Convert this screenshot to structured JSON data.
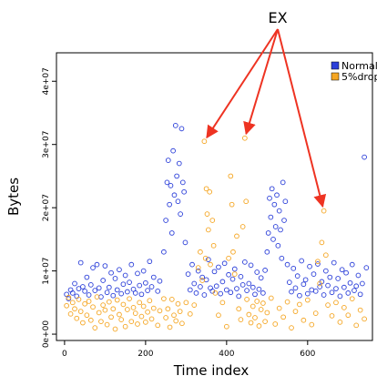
{
  "chart_data": {
    "type": "scatter",
    "xlabel": "Time index",
    "ylabel": "Bytes",
    "xlim": [
      -20,
      760
    ],
    "ylim": [
      -1000000,
      44500000
    ],
    "x_ticks": [
      0,
      200,
      400,
      600
    ],
    "x_tick_labels": [
      "0",
      "200",
      "400",
      "600"
    ],
    "y_ticks": [
      0,
      10000000,
      20000000,
      30000000,
      40000000
    ],
    "y_tick_labels": [
      "0e+00",
      "1e+07",
      "2e+07",
      "3e+07",
      "4e+07"
    ],
    "grid": false,
    "legend": {
      "position": "top-right"
    },
    "annotation": {
      "text": "EX",
      "targets": [
        {
          "x": 345,
          "y": 30500000
        },
        {
          "x": 445,
          "y": 31000000
        },
        {
          "x": 640,
          "y": 19500000
        }
      ]
    },
    "series": [
      {
        "name": "Normal",
        "color": "#2b3fd9",
        "marker": "open-circle",
        "points": [
          [
            5,
            6300000.0
          ],
          [
            10,
            5600000.0
          ],
          [
            15,
            7000000.0
          ],
          [
            20,
            6500000.0
          ],
          [
            25,
            8000000.0
          ],
          [
            30,
            6000000.0
          ],
          [
            35,
            7200000.0
          ],
          [
            40,
            11300000.0
          ],
          [
            45,
            7500000.0
          ],
          [
            50,
            6800000.0
          ],
          [
            55,
            9000000.0
          ],
          [
            60,
            6200000.0
          ],
          [
            65,
            7800000.0
          ],
          [
            70,
            10500000.0
          ],
          [
            75,
            6900000.0
          ],
          [
            80,
            11000000.0
          ],
          [
            85,
            7300000.0
          ],
          [
            90,
            5900000.0
          ],
          [
            95,
            8500000.0
          ],
          [
            100,
            10800000.0
          ],
          [
            105,
            6600000.0
          ],
          [
            110,
            7400000.0
          ],
          [
            115,
            9700000.0
          ],
          [
            120,
            6100000.0
          ],
          [
            125,
            8800000.0
          ],
          [
            130,
            7000000.0
          ],
          [
            135,
            10200000.0
          ],
          [
            140,
            6400000.0
          ],
          [
            145,
            7900000.0
          ],
          [
            150,
            9300000.0
          ],
          [
            155,
            6700000.0
          ],
          [
            160,
            8200000.0
          ],
          [
            165,
            11000000.0
          ],
          [
            170,
            7100000.0
          ],
          [
            175,
            6500000.0
          ],
          [
            180,
            9600000.0
          ],
          [
            185,
            7700000.0
          ],
          [
            190,
            6300000.0
          ],
          [
            195,
            10000000.0
          ],
          [
            200,
            8100000.0
          ],
          [
            205,
            6900000.0
          ],
          [
            210,
            11500000.0
          ],
          [
            215,
            7500000.0
          ],
          [
            220,
            9000000.0
          ],
          [
            230,
            6800000.0
          ],
          [
            235,
            8400000.0
          ],
          [
            245,
            13000000.0
          ],
          [
            250,
            18000000.0
          ],
          [
            253,
            24000000.0
          ],
          [
            256,
            27500000.0
          ],
          [
            259,
            20500000.0
          ],
          [
            262,
            23500000.0
          ],
          [
            265,
            16000000.0
          ],
          [
            268,
            29000000.0
          ],
          [
            271,
            22000000.0
          ],
          [
            274,
            33000000.0
          ],
          [
            277,
            25000000.0
          ],
          [
            280,
            21000000.0
          ],
          [
            283,
            27000000.0
          ],
          [
            286,
            19000000.0
          ],
          [
            289,
            32500000.0
          ],
          [
            292,
            24000000.0
          ],
          [
            295,
            22500000.0
          ],
          [
            298,
            14500000.0
          ],
          [
            305,
            9500000.0
          ],
          [
            310,
            7000000.0
          ],
          [
            315,
            11000000.0
          ],
          [
            320,
            8000000.0
          ],
          [
            325,
            6500000.0
          ],
          [
            330,
            10000000.0
          ],
          [
            335,
            7500000.0
          ],
          [
            340,
            9000000.0
          ],
          [
            345,
            6200000.0
          ],
          [
            350,
            8600000.0
          ],
          [
            355,
            11800000.0
          ],
          [
            360,
            7300000.0
          ],
          [
            365,
            6800000.0
          ],
          [
            370,
            9900000.0
          ],
          [
            375,
            7600000.0
          ],
          [
            380,
            10600000.0
          ],
          [
            385,
            6400000.0
          ],
          [
            390,
            8300000.0
          ],
          [
            395,
            11200000.0
          ],
          [
            400,
            7000000.0
          ],
          [
            405,
            9400000.0
          ],
          [
            410,
            6600000.0
          ],
          [
            415,
            8700000.0
          ],
          [
            420,
            10300000.0
          ],
          [
            425,
            7200000.0
          ],
          [
            430,
            6000000.0
          ],
          [
            435,
            9100000.0
          ],
          [
            440,
            7800000.0
          ],
          [
            445,
            11400000.0
          ],
          [
            450,
            6900000.0
          ],
          [
            455,
            8000000.0
          ],
          [
            460,
            10900000.0
          ],
          [
            465,
            7400000.0
          ],
          [
            470,
            6300000.0
          ],
          [
            475,
            9800000.0
          ],
          [
            480,
            7100000.0
          ],
          [
            485,
            8900000.0
          ],
          [
            490,
            6500000.0
          ],
          [
            495,
            10100000.0
          ],
          [
            500,
            13000000.0
          ],
          [
            503,
            16000000.0
          ],
          [
            506,
            21500000.0
          ],
          [
            509,
            18500000.0
          ],
          [
            512,
            23000000.0
          ],
          [
            515,
            15000000.0
          ],
          [
            518,
            20500000.0
          ],
          [
            521,
            17000000.0
          ],
          [
            524,
            22000000.0
          ],
          [
            527,
            14000000.0
          ],
          [
            530,
            19500000.0
          ],
          [
            533,
            16500000.0
          ],
          [
            536,
            12000000.0
          ],
          [
            539,
            24000000.0
          ],
          [
            542,
            18000000.0
          ],
          [
            545,
            21000000.0
          ],
          [
            550,
            11000000.0
          ],
          [
            555,
            8200000.0
          ],
          [
            560,
            6700000.0
          ],
          [
            565,
            10400000.0
          ],
          [
            570,
            7300000.0
          ],
          [
            575,
            9200000.0
          ],
          [
            580,
            6100000.0
          ],
          [
            585,
            11600000.0
          ],
          [
            590,
            7900000.0
          ],
          [
            595,
            8600000.0
          ],
          [
            600,
            6400000.0
          ],
          [
            605,
            10700000.0
          ],
          [
            610,
            7000000.0
          ],
          [
            615,
            9500000.0
          ],
          [
            620,
            6800000.0
          ],
          [
            625,
            11100000.0
          ],
          [
            630,
            7500000.0
          ],
          [
            635,
            8300000.0
          ],
          [
            640,
            6200000.0
          ],
          [
            645,
            10000000.0
          ],
          [
            650,
            7700000.0
          ],
          [
            655,
            9000000.0
          ],
          [
            660,
            6600000.0
          ],
          [
            665,
            11300000.0
          ],
          [
            670,
            7200000.0
          ],
          [
            675,
            8800000.0
          ],
          [
            680,
            6000000.0
          ],
          [
            685,
            10200000.0
          ],
          [
            690,
            7400000.0
          ],
          [
            695,
            9700000.0
          ],
          [
            700,
            6500000.0
          ],
          [
            705,
            8100000.0
          ],
          [
            710,
            11000000.0
          ],
          [
            715,
            6900000.0
          ],
          [
            720,
            7600000.0
          ],
          [
            725,
            9300000.0
          ],
          [
            730,
            6300000.0
          ],
          [
            735,
            8000000.0
          ],
          [
            740,
            28000000.0
          ],
          [
            745,
            10500000.0
          ]
        ]
      },
      {
        "name": "5%drop",
        "color": "#f5a623",
        "marker": "open-circle",
        "points": [
          [
            5,
            4500000.0
          ],
          [
            10,
            5800000.0
          ],
          [
            15,
            3200000.0
          ],
          [
            20,
            5000000.0
          ],
          [
            25,
            4000000.0
          ],
          [
            30,
            2500000.0
          ],
          [
            35,
            5500000.0
          ],
          [
            40,
            3600000.0
          ],
          [
            45,
            1800000.0
          ],
          [
            50,
            4800000.0
          ],
          [
            55,
            3000000.0
          ],
          [
            60,
            5200000.0
          ],
          [
            65,
            2200000.0
          ],
          [
            70,
            4300000.0
          ],
          [
            75,
            1000000.0
          ],
          [
            80,
            5900000.0
          ],
          [
            85,
            3400000.0
          ],
          [
            90,
            2000000.0
          ],
          [
            95,
            4600000.0
          ],
          [
            100,
            3800000.0
          ],
          [
            105,
            1500000.0
          ],
          [
            110,
            5100000.0
          ],
          [
            115,
            2700000.0
          ],
          [
            120,
            4000000.0
          ],
          [
            125,
            800000.0
          ],
          [
            130,
            5400000.0
          ],
          [
            135,
            3100000.0
          ],
          [
            140,
            2300000.0
          ],
          [
            145,
            4700000.0
          ],
          [
            150,
            1200000.0
          ],
          [
            155,
            3900000.0
          ],
          [
            160,
            5600000.0
          ],
          [
            165,
            2000000.0
          ],
          [
            170,
            4200000.0
          ],
          [
            175,
            3300000.0
          ],
          [
            180,
            1600000.0
          ],
          [
            185,
            5000000.0
          ],
          [
            190,
            2800000.0
          ],
          [
            195,
            4400000.0
          ],
          [
            200,
            1900000.0
          ],
          [
            205,
            3500000.0
          ],
          [
            210,
            5300000.0
          ],
          [
            215,
            2400000.0
          ],
          [
            220,
            4100000.0
          ],
          [
            230,
            1400000.0
          ],
          [
            235,
            3700000.0
          ],
          [
            245,
            5600000.0
          ],
          [
            250,
            2600000.0
          ],
          [
            255,
            4000000.0
          ],
          [
            260,
            1100000.0
          ],
          [
            265,
            5500000.0
          ],
          [
            270,
            3000000.0
          ],
          [
            275,
            2100000.0
          ],
          [
            280,
            4800000.0
          ],
          [
            285,
            3600000.0
          ],
          [
            290,
            1700000.0
          ],
          [
            300,
            5000000.0
          ],
          [
            310,
            3200000.0
          ],
          [
            320,
            4600000.0
          ],
          [
            330,
            10500000.0
          ],
          [
            335,
            13000000.0
          ],
          [
            340,
            8500000.0
          ],
          [
            345,
            30500000.0
          ],
          [
            348,
            12000000.0
          ],
          [
            350,
            23000000.0
          ],
          [
            352,
            19000000.0
          ],
          [
            355,
            16500000.0
          ],
          [
            358,
            22500000.0
          ],
          [
            360,
            11000000.0
          ],
          [
            365,
            18000000.0
          ],
          [
            368,
            14000000.0
          ],
          [
            372,
            6500000.0
          ],
          [
            380,
            3000000.0
          ],
          [
            390,
            5000000.0
          ],
          [
            400,
            1200000.0
          ],
          [
            405,
            12000000.0
          ],
          [
            410,
            25000000.0
          ],
          [
            413,
            20500000.0
          ],
          [
            416,
            13000000.0
          ],
          [
            420,
            9500000.0
          ],
          [
            425,
            15500000.0
          ],
          [
            430,
            4000000.0
          ],
          [
            435,
            2300000.0
          ],
          [
            440,
            17000000.0
          ],
          [
            445,
            31000000.0
          ],
          [
            448,
            21000000.0
          ],
          [
            450,
            5500000.0
          ],
          [
            455,
            3100000.0
          ],
          [
            460,
            1800000.0
          ],
          [
            465,
            4400000.0
          ],
          [
            470,
            2600000.0
          ],
          [
            475,
            5200000.0
          ],
          [
            480,
            1300000.0
          ],
          [
            485,
            3900000.0
          ],
          [
            490,
            4900000.0
          ],
          [
            495,
            2000000.0
          ],
          [
            500,
            3400000.0
          ],
          [
            510,
            5700000.0
          ],
          [
            520,
            1600000.0
          ],
          [
            530,
            4100000.0
          ],
          [
            540,
            2700000.0
          ],
          [
            550,
            5100000.0
          ],
          [
            560,
            1000000.0
          ],
          [
            570,
            3600000.0
          ],
          [
            580,
            4700000.0
          ],
          [
            590,
            2200000.0
          ],
          [
            600,
            5400000.0
          ],
          [
            610,
            1500000.0
          ],
          [
            620,
            3300000.0
          ],
          [
            625,
            11500000.0
          ],
          [
            630,
            8000000.0
          ],
          [
            635,
            14500000.0
          ],
          [
            640,
            19500000.0
          ],
          [
            645,
            12500000.0
          ],
          [
            650,
            4600000.0
          ],
          [
            660,
            2900000.0
          ],
          [
            670,
            5000000.0
          ],
          [
            680,
            1900000.0
          ],
          [
            690,
            4200000.0
          ],
          [
            700,
            3000000.0
          ],
          [
            710,
            5600000.0
          ],
          [
            720,
            1400000.0
          ],
          [
            730,
            3800000.0
          ],
          [
            740,
            2400000.0
          ]
        ]
      }
    ]
  }
}
